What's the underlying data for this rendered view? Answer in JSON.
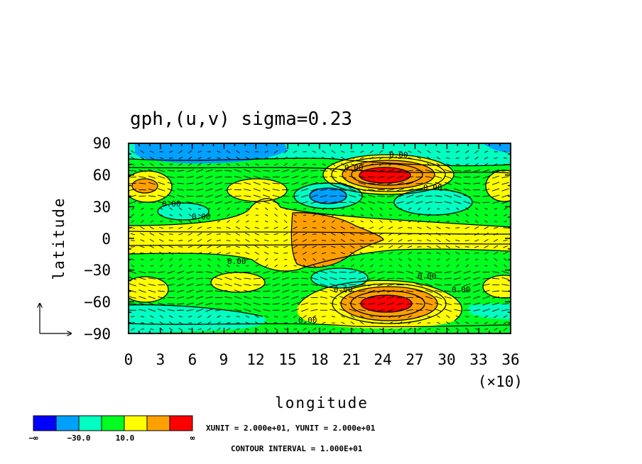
{
  "chart_data": {
    "type": "heatmap",
    "title": "gph,(u,v) sigma=0.23",
    "xlabel": "longitude",
    "ylabel": "latitude",
    "x_ticks": [
      "0",
      "3",
      "6",
      "9",
      "12",
      "15",
      "18",
      "21",
      "24",
      "27",
      "30",
      "33",
      "36"
    ],
    "x_scale_note": "(×10)",
    "y_ticks": [
      "90",
      "60",
      "30",
      "0",
      "−30",
      "−60",
      "−90"
    ],
    "xlim": [
      0,
      360
    ],
    "ylim": [
      -90,
      90
    ],
    "contour_label": "0.00",
    "contour_interval_text": "CONTOUR INTERVAL = 1.000E+01",
    "vector_unit_text": "XUNIT = 2.000e+01, YUNIT = 2.000e+01",
    "colorbar": {
      "colors": [
        "#0000ff",
        "#00a0ff",
        "#00ffc0",
        "#00ff20",
        "#ffff00",
        "#ffa000",
        "#ff0000"
      ],
      "labels": [
        "−∞",
        "−30.0",
        "10.0",
        "∞"
      ]
    },
    "features": [
      {
        "lon": 60,
        "lat": 82,
        "value": -30,
        "note": "negative band along north edge"
      },
      {
        "lon": 200,
        "lat": 40,
        "value": -30,
        "note": "negative anomaly"
      },
      {
        "lon": 245,
        "lat": 60,
        "value": 60,
        "note": "strong positive"
      },
      {
        "lon": 245,
        "lat": -60,
        "value": 60,
        "note": "strong positive"
      },
      {
        "lon": 180,
        "lat": 5,
        "value": 30,
        "note": "positive tropical"
      },
      {
        "lon": 10,
        "lat": 50,
        "value": 20,
        "note": "positive"
      }
    ]
  }
}
